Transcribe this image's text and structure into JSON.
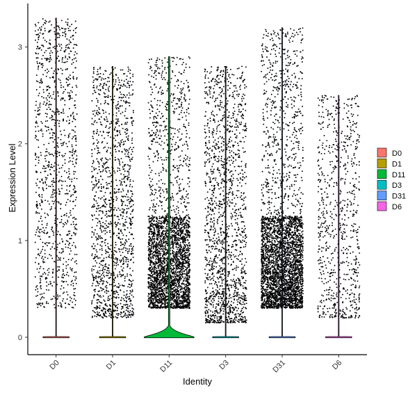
{
  "chart_data": {
    "type": "violin",
    "title": "",
    "xlabel": "Identity",
    "ylabel": "Expression Level",
    "categories": [
      "D0",
      "D1",
      "D11",
      "D3",
      "D31",
      "D6"
    ],
    "ylim": [
      -0.18,
      3.45
    ],
    "yticks": [
      0,
      1,
      2,
      3
    ],
    "grid": false,
    "legend_position": "right",
    "series": [
      {
        "name": "D0",
        "color": "#F8766D",
        "max": 3.3,
        "points": 1100,
        "dist": "uniform",
        "peak_width": 0.46
      },
      {
        "name": "D1",
        "color": "#B79F00",
        "max": 2.8,
        "points": 1400,
        "dist": "uniform-low",
        "peak_width": 0.46
      },
      {
        "name": "D11",
        "color": "#00BA38",
        "max": 2.9,
        "points": 3200,
        "dist": "concentrated",
        "peak_width": 0.88
      },
      {
        "name": "D3",
        "color": "#00BFC4",
        "max": 2.8,
        "points": 1600,
        "dist": "mid",
        "peak_width": 0.46
      },
      {
        "name": "D31",
        "color": "#619CFF",
        "max": 3.2,
        "points": 3600,
        "dist": "concentrated",
        "peak_width": 0.46
      },
      {
        "name": "D6",
        "color": "#F564E3",
        "max": 2.5,
        "points": 800,
        "dist": "uniform-low",
        "peak_width": 0.46
      }
    ]
  }
}
